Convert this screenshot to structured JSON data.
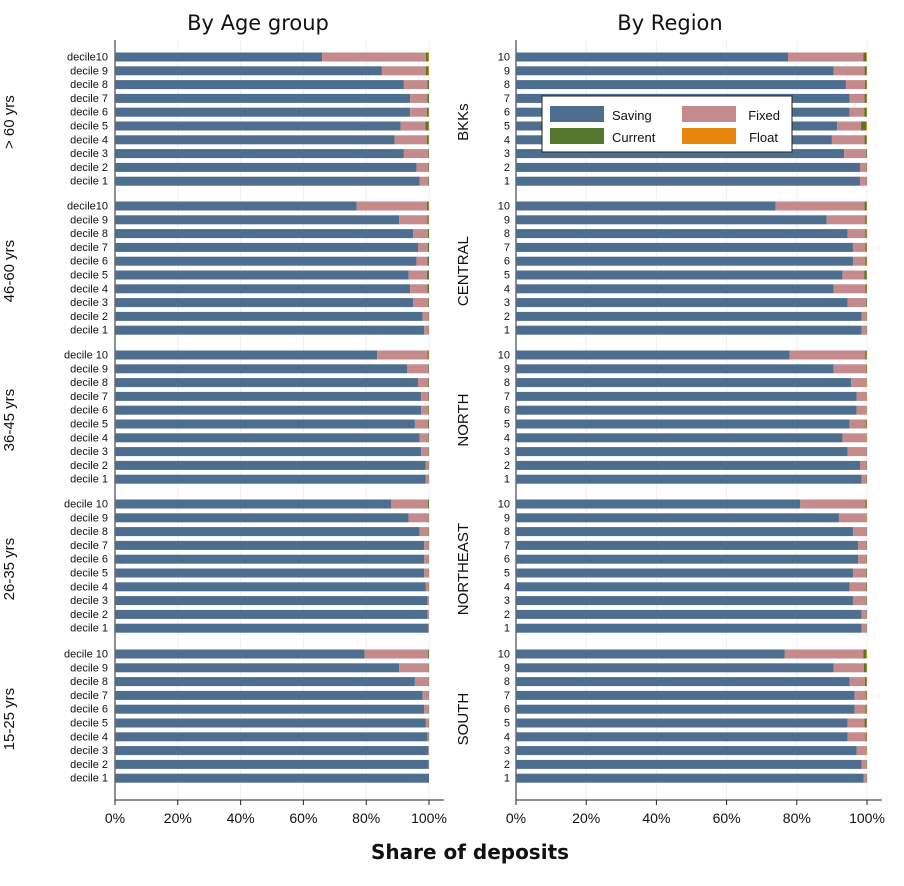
{
  "chart_data": {
    "type": "bar",
    "orientation": "horizontal",
    "stacked": true,
    "xlabel": "Share of deposits",
    "xlim": [
      0,
      100
    ],
    "xticks": [
      "0%",
      "20%",
      "40%",
      "60%",
      "80%",
      "100%"
    ],
    "legend": {
      "placement": "inside top of right panel",
      "entries": [
        {
          "name": "Saving",
          "color": "#4d6e8f"
        },
        {
          "name": "Fixed",
          "color": "#c48a8c"
        },
        {
          "name": "Current",
          "color": "#55782f"
        },
        {
          "name": "Float",
          "color": "#e8860c"
        }
      ]
    },
    "series_colors": {
      "Saving": "#4d6e8f",
      "Fixed": "#c48a8c",
      "Current": "#55782f",
      "Float": "#e8860c"
    },
    "panels": [
      {
        "title": "By Age group",
        "groups": [
          {
            "label": "> 60 yrs",
            "categories": [
              "decile10",
              "decile 9",
              "decile 8",
              "decile 7",
              "decile 6",
              "decile 5",
              "decile 4",
              "decile 3",
              "decile 2",
              "decile 1"
            ],
            "saving": [
              66,
              85,
              92,
              94,
              94,
              91,
              89,
              92,
              96,
              97
            ],
            "fixed": [
              33,
              14,
              7.5,
              5.5,
              5.3,
              7.8,
              10.3,
              7.8,
              3.8,
              2.8
            ],
            "current": [
              0.8,
              0.8,
              0.5,
              0.5,
              0.6,
              1.1,
              0.6,
              0.2,
              0.2,
              0.2
            ],
            "float": [
              0.2,
              0.2,
              0,
              0,
              0.1,
              0.1,
              0.1,
              0,
              0,
              0
            ]
          },
          {
            "label": "46-60 yrs",
            "categories": [
              "decile10",
              "decile 9",
              "decile 8",
              "decile 7",
              "decile 6",
              "decile 5",
              "decile 4",
              "decile 3",
              "decile 2",
              "decile 1"
            ],
            "saving": [
              77,
              90.5,
              95,
              96.5,
              96,
              93.5,
              94,
              95,
              98,
              98.5
            ],
            "fixed": [
              22.3,
              9,
              4.6,
              3.1,
              3.5,
              5.8,
              5.5,
              4.8,
              1.9,
              1.4
            ],
            "current": [
              0.6,
              0.4,
              0.4,
              0.4,
              0.5,
              0.7,
              0.5,
              0.2,
              0.1,
              0.1
            ],
            "float": [
              0.1,
              0.1,
              0,
              0,
              0,
              0,
              0,
              0,
              0,
              0
            ]
          },
          {
            "label": "36-45 yrs",
            "categories": [
              "decile 10",
              "decile 9",
              "decile 8",
              "decile 7",
              "decile 6",
              "decile 5",
              "decile 4",
              "decile 3",
              "decile 2",
              "decile 1"
            ],
            "saving": [
              83.5,
              93,
              96.5,
              97.5,
              97.5,
              95.5,
              97,
              97.5,
              99,
              99
            ],
            "fixed": [
              16,
              6.8,
              3.3,
              2.3,
              2.3,
              4.2,
              2.8,
              2.4,
              0.9,
              0.9
            ],
            "current": [
              0.4,
              0.2,
              0.2,
              0.2,
              0.2,
              0.3,
              0.2,
              0.1,
              0.1,
              0.1
            ],
            "float": [
              0.1,
              0,
              0,
              0,
              0,
              0,
              0,
              0,
              0,
              0
            ]
          },
          {
            "label": "26-35 yrs",
            "categories": [
              "decile 10",
              "decile 9",
              "decile 8",
              "decile 7",
              "decile 6",
              "decile 5",
              "decile 4",
              "decile 3",
              "decile 2",
              "decile 1"
            ],
            "saving": [
              88,
              93.5,
              97,
              98.5,
              98.5,
              98.5,
              99,
              99.5,
              99.5,
              99.8
            ],
            "fixed": [
              11.7,
              6.4,
              2.9,
              1.4,
              1.4,
              1.4,
              0.9,
              0.5,
              0.5,
              0.2
            ],
            "current": [
              0.3,
              0.1,
              0.1,
              0.1,
              0.1,
              0.1,
              0.1,
              0,
              0,
              0
            ],
            "float": [
              0,
              0,
              0,
              0,
              0,
              0,
              0,
              0,
              0,
              0
            ]
          },
          {
            "label": "15-25 yrs",
            "categories": [
              "decile 10",
              "decile 9",
              "decile 8",
              "decile 7",
              "decile 6",
              "decile 5",
              "decile 4",
              "decile 3",
              "decile 2",
              "decile 1"
            ],
            "saving": [
              79.5,
              90.5,
              95.5,
              98,
              98.5,
              99,
              99.5,
              99.8,
              99.9,
              100
            ],
            "fixed": [
              20.2,
              9.4,
              4.4,
              1.9,
              1.4,
              0.9,
              0.4,
              0.2,
              0.1,
              0
            ],
            "current": [
              0.3,
              0.1,
              0.1,
              0.1,
              0.1,
              0.1,
              0.1,
              0,
              0,
              0
            ],
            "float": [
              0,
              0,
              0,
              0,
              0,
              0,
              0,
              0,
              0,
              0
            ]
          }
        ]
      },
      {
        "title": "By Region",
        "groups": [
          {
            "label": "BKKs",
            "categories": [
              "10",
              "9",
              "8",
              "7",
              "6",
              "5",
              "4",
              "3",
              "2",
              "1"
            ],
            "saving": [
              77.5,
              90.5,
              94,
              95,
              95,
              91.5,
              90,
              93.5,
              98,
              98
            ],
            "fixed": [
              21.5,
              8.8,
              5.4,
              4.3,
              4.2,
              6.8,
              9.3,
              6.3,
              1.9,
              1.9
            ],
            "current": [
              0.8,
              0.6,
              0.5,
              0.6,
              0.7,
              1.5,
              0.6,
              0.2,
              0.1,
              0.1
            ],
            "float": [
              0.2,
              0.1,
              0.1,
              0.1,
              0.1,
              0.2,
              0.1,
              0,
              0,
              0
            ]
          },
          {
            "label": "CENTRAL",
            "categories": [
              "10",
              "9",
              "8",
              "7",
              "6",
              "5",
              "4",
              "3",
              "2",
              "1"
            ],
            "saving": [
              74,
              88.5,
              94.5,
              96,
              96,
              93,
              90.5,
              94.5,
              98.5,
              98.5
            ],
            "fixed": [
              25.3,
              11,
              5,
              3.5,
              3.5,
              6.2,
              9,
              5.3,
              1.4,
              1.4
            ],
            "current": [
              0.6,
              0.4,
              0.4,
              0.4,
              0.4,
              0.7,
              0.4,
              0.2,
              0.1,
              0.1
            ],
            "float": [
              0.1,
              0.1,
              0.1,
              0.1,
              0.1,
              0.1,
              0.1,
              0,
              0,
              0
            ]
          },
          {
            "label": "NORTH",
            "categories": [
              "10",
              "9",
              "8",
              "7",
              "6",
              "5",
              "4",
              "3",
              "2",
              "1"
            ],
            "saving": [
              78,
              90.5,
              95.5,
              97,
              97,
              95,
              93,
              94.5,
              98,
              98.5
            ],
            "fixed": [
              21.5,
              9.2,
              4.3,
              2.8,
              2.8,
              4.6,
              6.8,
              5.4,
              1.9,
              1.4
            ],
            "current": [
              0.4,
              0.2,
              0.1,
              0.1,
              0.1,
              0.3,
              0.1,
              0.1,
              0.1,
              0.1
            ],
            "float": [
              0.1,
              0.1,
              0.1,
              0.1,
              0.1,
              0.1,
              0.1,
              0,
              0,
              0
            ]
          },
          {
            "label": "NORTHEAST",
            "categories": [
              "10",
              "9",
              "8",
              "7",
              "6",
              "5",
              "4",
              "3",
              "2",
              "1"
            ],
            "saving": [
              81,
              92,
              96,
              97.5,
              97.5,
              96,
              95,
              96,
              98.5,
              98.5
            ],
            "fixed": [
              18.5,
              7.8,
              3.9,
              2.4,
              2.4,
              3.8,
              4.8,
              3.9,
              1.4,
              1.4
            ],
            "current": [
              0.4,
              0.1,
              0.1,
              0.1,
              0.1,
              0.2,
              0.2,
              0.1,
              0.1,
              0.1
            ],
            "float": [
              0.1,
              0.1,
              0,
              0,
              0,
              0,
              0,
              0,
              0,
              0
            ]
          },
          {
            "label": "SOUTH",
            "categories": [
              "10",
              "9",
              "8",
              "7",
              "6",
              "5",
              "4",
              "3",
              "2",
              "1"
            ],
            "saving": [
              76.5,
              90.5,
              95,
              96.5,
              96.5,
              94.5,
              94.5,
              97,
              98.5,
              99
            ],
            "fixed": [
              22.5,
              8.6,
              4.4,
              3.1,
              3.1,
              4.8,
              5.1,
              2.8,
              1.4,
              0.9
            ],
            "current": [
              0.8,
              0.8,
              0.5,
              0.3,
              0.3,
              0.6,
              0.3,
              0.1,
              0.1,
              0.1
            ],
            "float": [
              0.2,
              0.1,
              0.1,
              0.1,
              0.1,
              0.1,
              0.1,
              0.1,
              0,
              0
            ]
          }
        ]
      }
    ]
  }
}
